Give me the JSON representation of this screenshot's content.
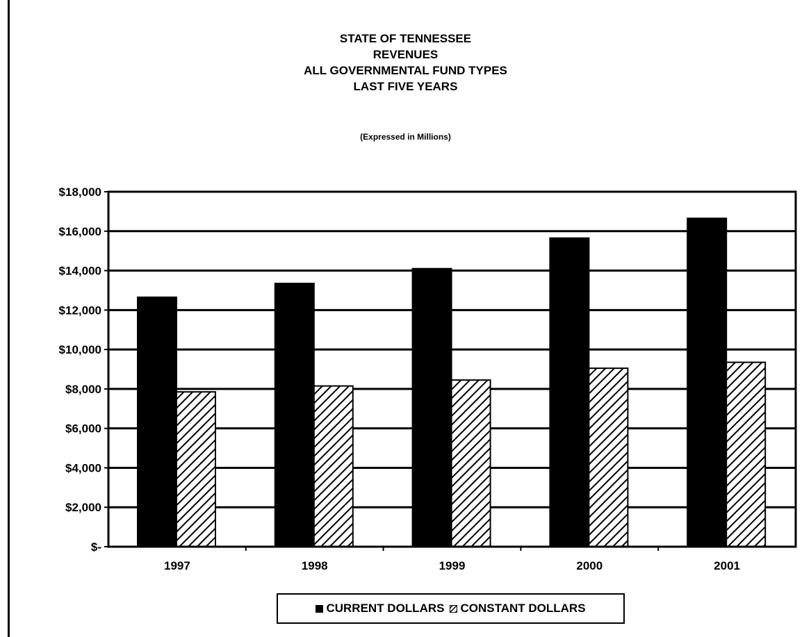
{
  "titles": [
    "STATE OF TENNESSEE",
    "REVENUES",
    "ALL GOVERNMENTAL FUND TYPES",
    "LAST FIVE YEARS"
  ],
  "subtitle": "(Expressed in Millions)",
  "chart_data": {
    "type": "bar",
    "categories": [
      "1997",
      "1998",
      "1999",
      "2000",
      "2001"
    ],
    "series": [
      {
        "name": "CURRENT DOLLARS",
        "values": [
          12650,
          13350,
          14100,
          15650,
          16650
        ],
        "color": "#000000",
        "pattern": "solid"
      },
      {
        "name": "CONSTANT DOLLARS",
        "values": [
          7850,
          8150,
          8450,
          9050,
          9350
        ],
        "color": "#ffffff",
        "pattern": "diagonal-hatch"
      }
    ],
    "ylim": [
      0,
      18000
    ],
    "yticks": [
      0,
      2000,
      4000,
      6000,
      8000,
      10000,
      12000,
      14000,
      16000,
      18000
    ],
    "ytick_labels": [
      "$-",
      "$2,000",
      "$4,000",
      "$6,000",
      "$8,000",
      "$10,000",
      "$12,000",
      "$14,000",
      "$16,000",
      "$18,000"
    ],
    "grid": true,
    "legend": "bottom-center"
  }
}
